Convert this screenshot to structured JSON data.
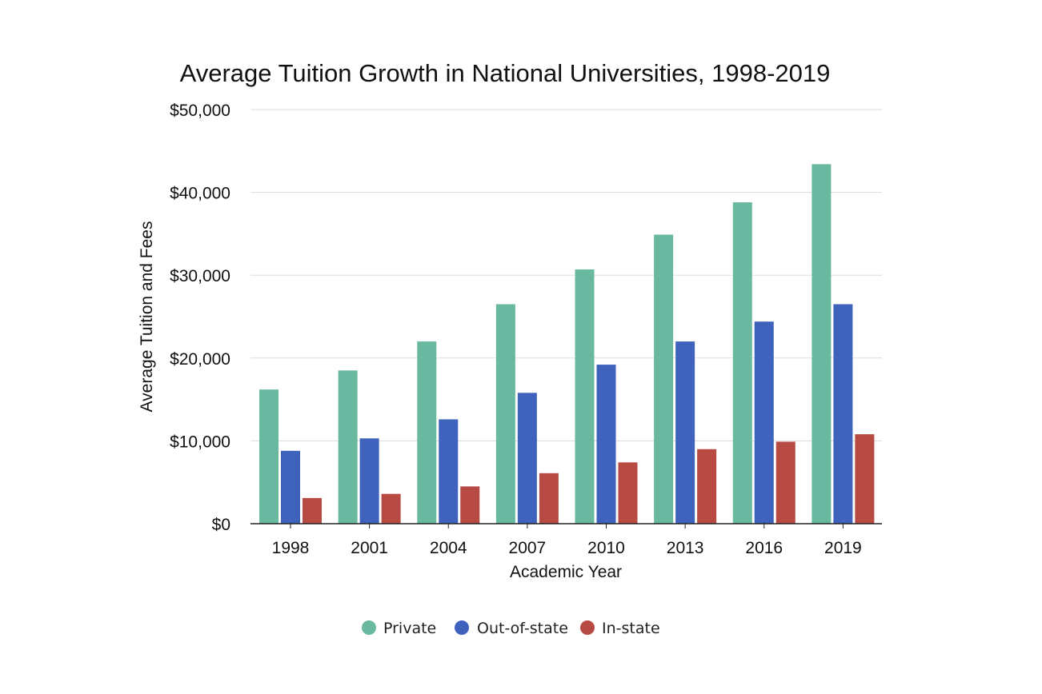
{
  "chart_data": {
    "type": "bar",
    "title": "Average Tuition Growth in National Universities, 1998-2019",
    "xlabel": "Academic Year",
    "ylabel": "Average Tuition and Fees",
    "categories": [
      "1998",
      "2001",
      "2004",
      "2007",
      "2010",
      "2013",
      "2016",
      "2019"
    ],
    "ylim": [
      0,
      50000
    ],
    "yticks": [
      0,
      10000,
      20000,
      30000,
      40000,
      50000
    ],
    "ytick_labels": [
      "$0",
      "$10,000",
      "$20,000",
      "$30,000",
      "$40,000",
      "$50,000"
    ],
    "grid": true,
    "legend_position": "bottom-center",
    "series": [
      {
        "name": "Private",
        "color": "#69b9a1",
        "values": [
          16200,
          18500,
          22000,
          26500,
          30700,
          34900,
          38800,
          43400
        ]
      },
      {
        "name": "Out-of-state",
        "color": "#3f63bd",
        "values": [
          8800,
          10300,
          12600,
          15800,
          19200,
          22000,
          24400,
          26500
        ]
      },
      {
        "name": "In-state",
        "color": "#b84a44",
        "values": [
          3100,
          3600,
          4500,
          6100,
          7400,
          9000,
          9900,
          10800
        ]
      }
    ]
  }
}
